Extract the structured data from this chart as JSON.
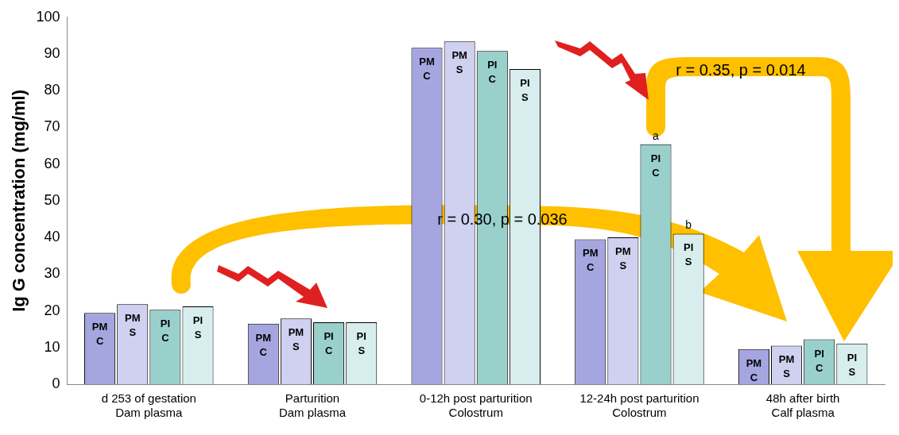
{
  "chart_data": {
    "type": "bar",
    "ylabel": "Ig G concentration (mg/ml)",
    "categories": [
      "d 253 of gestation\nDam plasma",
      "Parturition\nDam plasma",
      "0-12h post parturition\nColostrum",
      "12-24h post parturition\nColostrum",
      "48h after birth\nCalf plasma"
    ],
    "series": [
      {
        "name": "PM C",
        "color": "#a5a5e0",
        "values": [
          19.4,
          16.5,
          91.7,
          39.5,
          9.6
        ]
      },
      {
        "name": "PM S",
        "color": "#d0d0f0",
        "values": [
          21.8,
          17.9,
          93.4,
          40,
          10.5
        ]
      },
      {
        "name": "PI C",
        "color": "#99d0cc",
        "values": [
          20.3,
          16.9,
          90.8,
          65.4,
          12.2
        ],
        "value_labels": [
          null,
          null,
          null,
          "a",
          null
        ]
      },
      {
        "name": "PI S",
        "color": "#d8eeee",
        "values": [
          21.2,
          16.9,
          85.9,
          41,
          11.1
        ],
        "value_labels": [
          null,
          null,
          null,
          "b",
          null
        ]
      }
    ],
    "ylim": [
      0,
      100
    ],
    "yticks": [
      0,
      10,
      20,
      30,
      40,
      50,
      60,
      70,
      80,
      90,
      100
    ],
    "grid": false,
    "legend": false,
    "annotations": [
      "r = 0.30, p = 0.036",
      "r = 0.35, p = 0.014"
    ]
  }
}
